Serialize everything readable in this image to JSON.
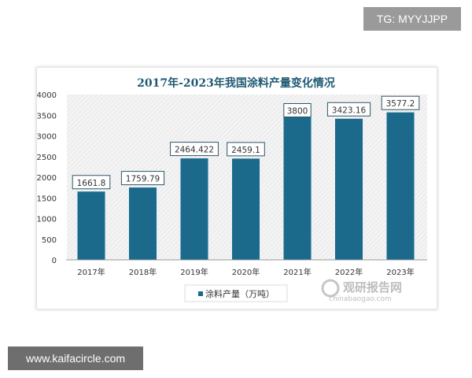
{
  "watermark_top": "TG: MYYJJPP",
  "watermark_bottom": "www.kaifacircle.com",
  "logo": {
    "name": "观研报告网",
    "url_text": "chinabaogao.com"
  },
  "colors": {
    "bar": "#1b6a8c",
    "title": "#1f5a73"
  },
  "chart_data": {
    "type": "bar",
    "title": "2017年-2023年我国涂料产量变化情况",
    "categories": [
      "2017年",
      "2018年",
      "2019年",
      "2020年",
      "2021年",
      "2022年",
      "2023年"
    ],
    "series": [
      {
        "name": "涂料产量（万吨）",
        "values": [
          1661.8,
          1759.79,
          2464.422,
          2459.1,
          3800,
          3423.16,
          3577.2
        ]
      }
    ],
    "data_labels": [
      "1661.8",
      "1759.79",
      "2464.422",
      "2459.1",
      "3800",
      "3423.16",
      "3577.2"
    ],
    "yticks": [
      0,
      500,
      1000,
      1500,
      2000,
      2500,
      3000,
      3500,
      4000
    ],
    "ylim": [
      0,
      4000
    ],
    "legend": "bottom",
    "grid": false
  }
}
